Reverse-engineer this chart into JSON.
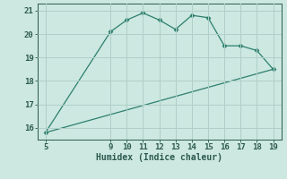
{
  "xlabel": "Humidex (Indice chaleur)",
  "line1_x": [
    5,
    9,
    10,
    11,
    12,
    13,
    14,
    15,
    16,
    17,
    18,
    19
  ],
  "line1_y": [
    15.8,
    20.1,
    20.6,
    20.9,
    20.6,
    20.2,
    20.8,
    20.7,
    19.5,
    19.5,
    19.3,
    18.5
  ],
  "line2_x": [
    5,
    19
  ],
  "line2_y": [
    15.8,
    18.5
  ],
  "line_color": "#2d7f6e",
  "bg_color": "#cce8e0",
  "grid_color": "#b0cfc8",
  "xlim": [
    4.5,
    19.5
  ],
  "ylim": [
    15.5,
    21.3
  ],
  "xticks": [
    5,
    9,
    10,
    11,
    12,
    13,
    14,
    15,
    16,
    17,
    18,
    19
  ],
  "yticks": [
    16,
    17,
    18,
    19,
    20,
    21
  ],
  "marker": "D",
  "marker_size": 2.5,
  "tick_color": "#2d5a4e",
  "label_fontsize": 6.5,
  "xlabel_fontsize": 7.0
}
